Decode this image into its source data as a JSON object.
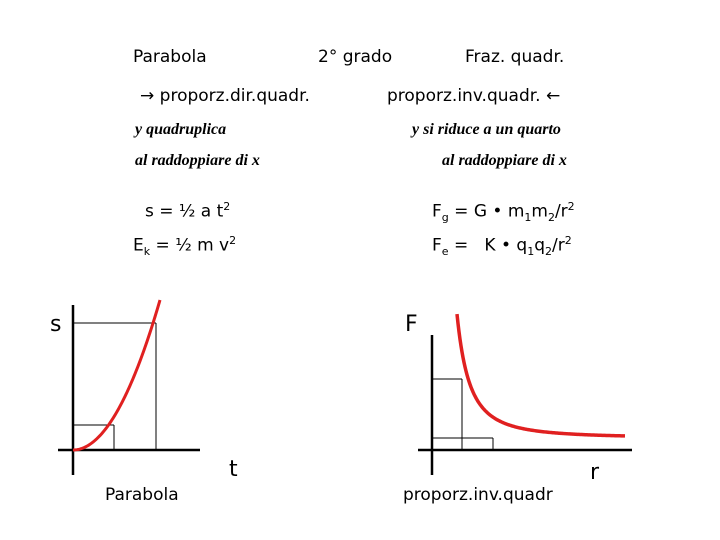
{
  "header": {
    "left": "Parabola",
    "center": "2° grado",
    "right": "Fraz. quadr."
  },
  "subheader": {
    "left_arrow": "→",
    "left": "proporz.dir.quadr.",
    "right": "proporz.inv.quadr.",
    "right_arrow": "←"
  },
  "desc": {
    "left_line1": "y quadruplica",
    "left_line2": "al raddoppiare di x",
    "right_line1": "y si riduce a un quarto",
    "right_line2": "al raddoppiare di x"
  },
  "formulas": {
    "left1": {
      "a": "s = ",
      "frac": "½",
      "b": " a t",
      "sup": "2"
    },
    "left2": {
      "a": "E",
      "sub": "k",
      "b": " = ",
      "frac": "½",
      "c": " m v",
      "sup": "2"
    },
    "right1": {
      "a": "F",
      "sub1": "g",
      "b": " = G • m",
      "sub2": "1",
      "c": "m",
      "sub3": "2",
      "d": "/r",
      "sup": "2"
    },
    "right2": {
      "a": "F",
      "sub1": "e",
      "b": " =   K • q",
      "sub2": "1",
      "c": "q",
      "sub3": "2",
      "d": "/r",
      "sup": "2"
    }
  },
  "left_graph": {
    "y_label": "s",
    "x_label": "t",
    "caption": "Parabola",
    "curve": "parabola",
    "curve_color": "#e02020"
  },
  "right_graph": {
    "y_label": "F",
    "x_label": "r",
    "caption": "proporz.inv.quadr",
    "curve": "inverse-square",
    "curve_color": "#e02020"
  }
}
